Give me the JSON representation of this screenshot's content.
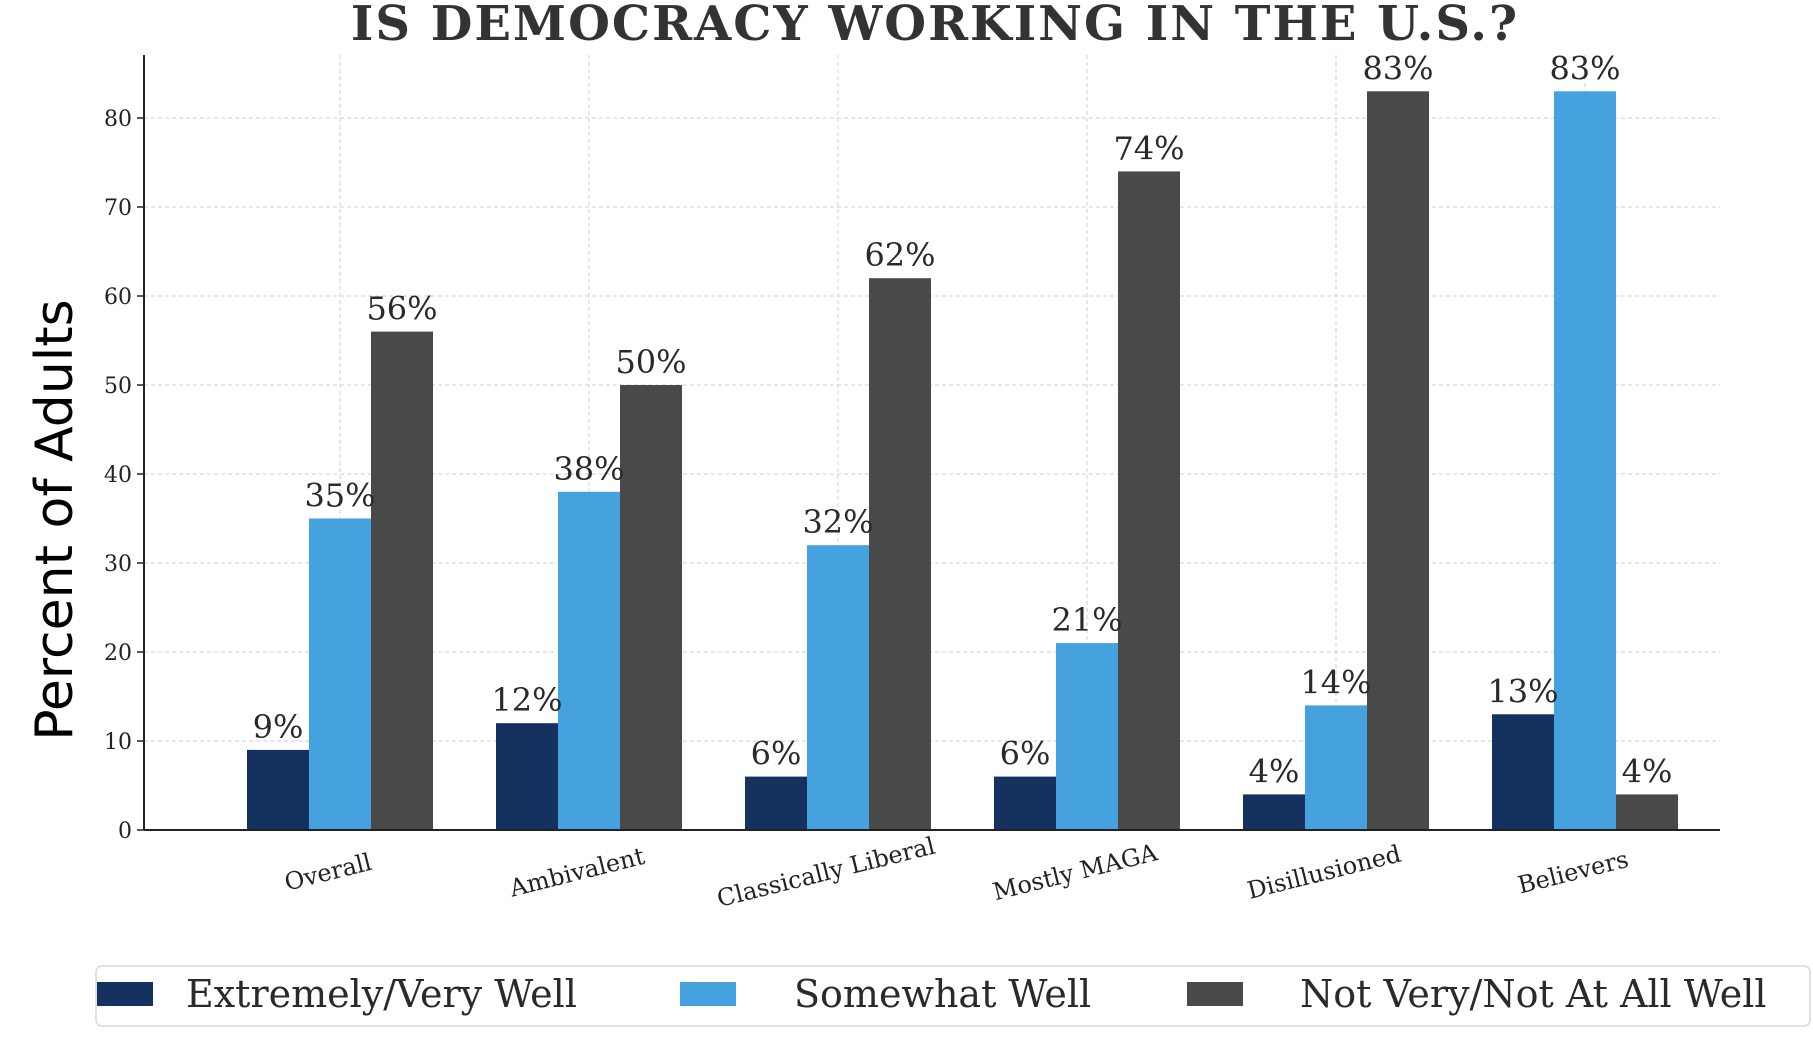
{
  "chart_data": {
    "type": "bar",
    "title": "IS DEMOCRACY WORKING IN THE U.S.?",
    "xlabel": "",
    "ylabel": "Percent of Adults",
    "ylim": [
      0,
      87
    ],
    "yticks": [
      0,
      10,
      20,
      30,
      40,
      50,
      60,
      70,
      80
    ],
    "grid": true,
    "legend_position": "bottom",
    "categories": [
      "Overall",
      "Ambivalent",
      "Classically Liberal",
      "Mostly MAGA",
      "Disillusioned",
      "Believers"
    ],
    "series": [
      {
        "name": "Extremely/Very Well",
        "color": "#14315f",
        "values": [
          9,
          12,
          6,
          6,
          4,
          13
        ],
        "labels": [
          "9%",
          "12%",
          "6%",
          "6%",
          "4%",
          "13%"
        ]
      },
      {
        "name": "Somewhat Well",
        "color": "#46a2de",
        "values": [
          35,
          38,
          32,
          21,
          14,
          83
        ],
        "labels": [
          "35%",
          "38%",
          "32%",
          "21%",
          "14%",
          "83%"
        ]
      },
      {
        "name": "Not Very/Not At All Well",
        "color": "#494949",
        "values": [
          56,
          50,
          62,
          74,
          83,
          4
        ],
        "labels": [
          "56%",
          "50%",
          "62%",
          "74%",
          "83%",
          "4%"
        ]
      }
    ]
  }
}
